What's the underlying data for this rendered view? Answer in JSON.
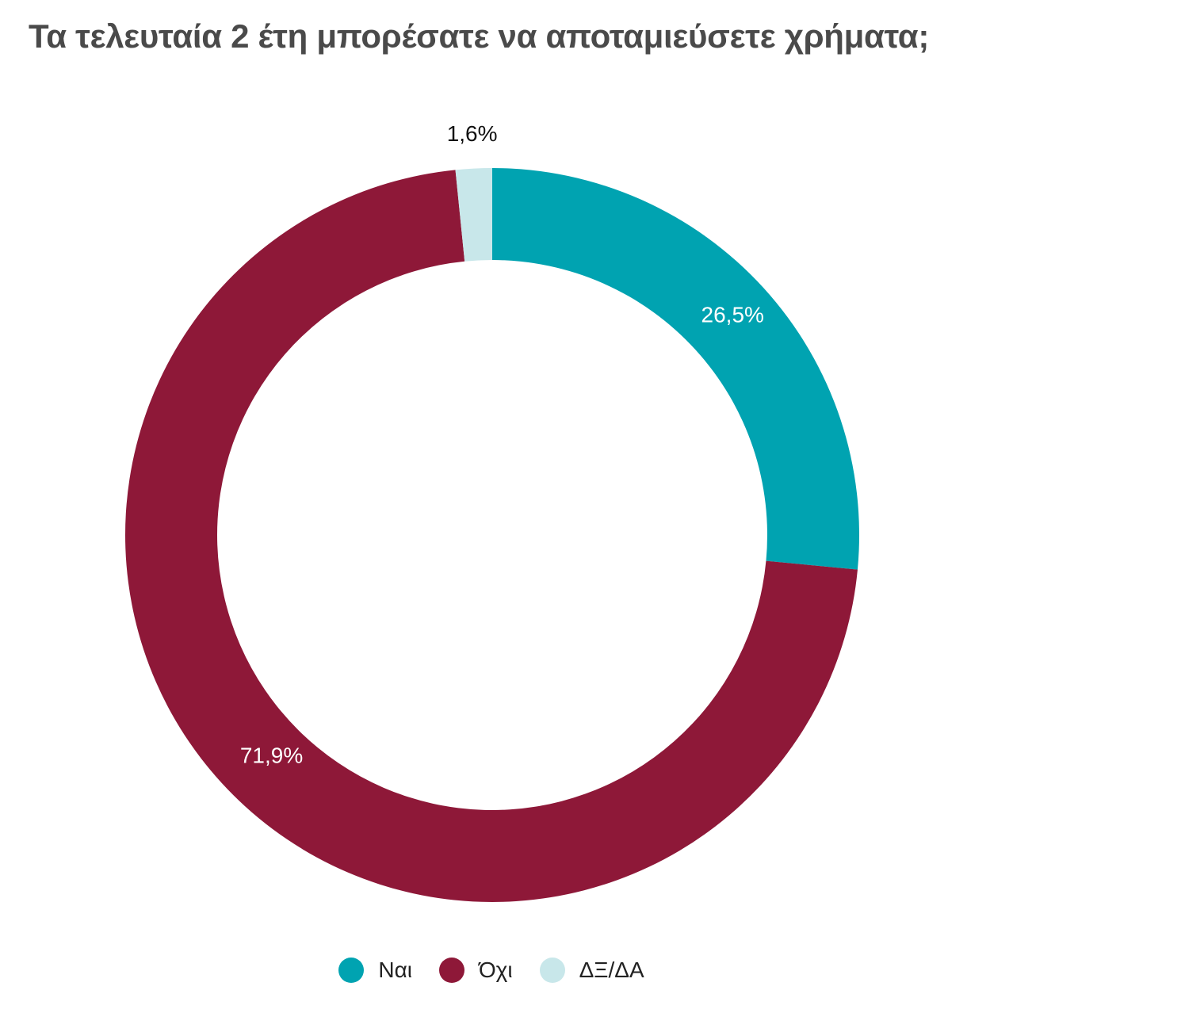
{
  "chart_data": {
    "type": "pie",
    "title": "Τα τελευταία 2 έτη μπορέσατε να αποταμιεύσετε χρήματα;",
    "categories": [
      "Ναι",
      "Όχι",
      "ΔΞ/ΔΑ"
    ],
    "values": [
      26.5,
      71.9,
      1.6
    ],
    "value_labels": [
      "26,5%",
      "71,9%",
      "1,6%"
    ],
    "colors": [
      "#00a3b1",
      "#8e1838",
      "#c8e7ea"
    ],
    "label_colors": [
      "#ffffff",
      "#ffffff",
      "#111111"
    ],
    "donut": true,
    "legend_position": "bottom"
  }
}
